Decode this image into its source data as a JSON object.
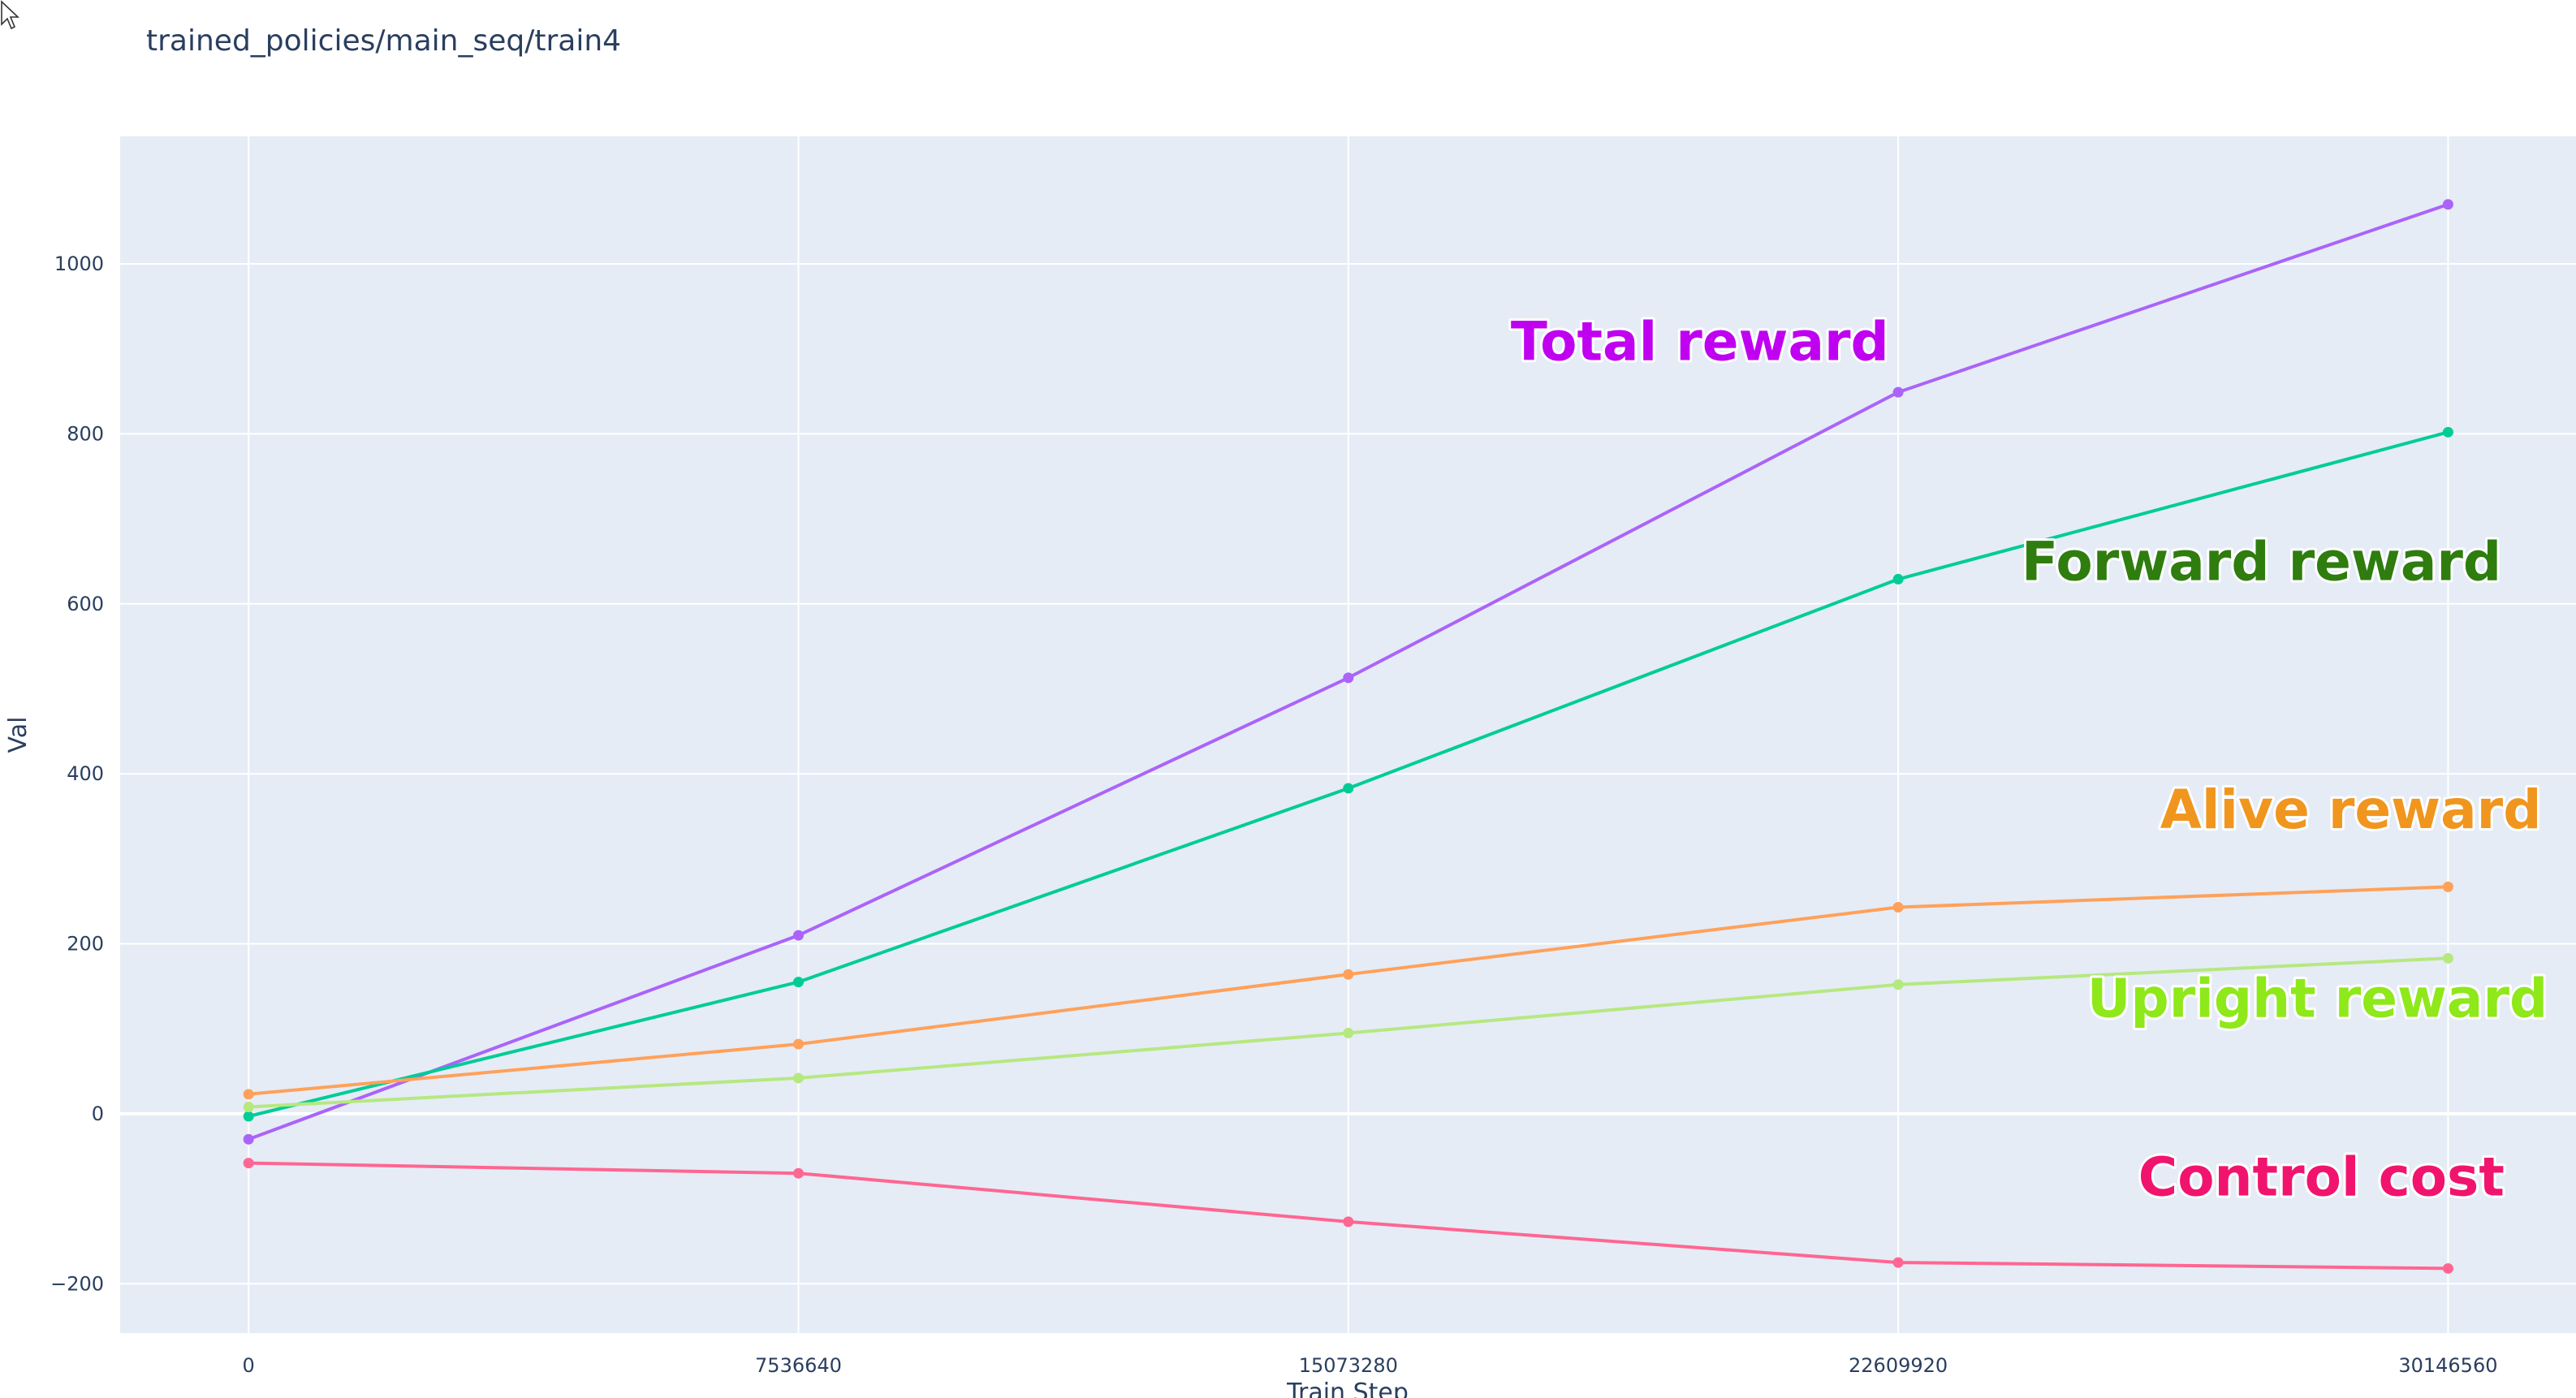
{
  "page": {
    "title": "trained_policies/main_seq/train4"
  },
  "chart_data": {
    "type": "line",
    "title": "trained_policies/main_seq/train4",
    "xlabel": "Train Step",
    "ylabel": "Val",
    "x": [
      0,
      7536640,
      15073280,
      22609920,
      30146560
    ],
    "x_tick_labels": [
      "0",
      "7536640",
      "15073280",
      "22609920",
      "30146560"
    ],
    "y_ticks": [
      -200,
      0,
      200,
      400,
      600,
      800,
      1000
    ],
    "y_tick_labels": [
      "−200",
      "0",
      "200",
      "400",
      "600",
      "800",
      "1000"
    ],
    "xlim": [
      -1760000,
      31900000
    ],
    "ylim": [
      -258,
      1150
    ],
    "grid": true,
    "legend": "none",
    "background": "#e5ecf6",
    "series": [
      {
        "name": "Total reward",
        "color": "#ab63fa",
        "values": [
          -30,
          210,
          513,
          849,
          1070
        ]
      },
      {
        "name": "Forward reward",
        "color": "#00cc96",
        "values": [
          -3,
          155,
          383,
          629,
          802
        ]
      },
      {
        "name": "Alive reward",
        "color": "#ffa15a",
        "values": [
          23,
          82,
          164,
          243,
          267
        ]
      },
      {
        "name": "Upright reward",
        "color": "#b6e880",
        "values": [
          8,
          42,
          95,
          152,
          183
        ]
      },
      {
        "name": "Control cost",
        "color": "#ff6692",
        "values": [
          -58,
          -70,
          -127,
          -175,
          -182
        ]
      }
    ],
    "annotations": [
      {
        "text": "Total reward",
        "color": "#c000f0",
        "x": 17300000,
        "y": 887
      },
      {
        "text": "Forward reward",
        "color": "#2e7d0e",
        "x": 24300000,
        "y": 628
      },
      {
        "text": "Alive reward",
        "color": "#f0961e",
        "x": 26200000,
        "y": 336
      },
      {
        "text": "Upright reward",
        "color": "#8ee81a",
        "x": 25200000,
        "y": 114
      },
      {
        "text": "Control cost",
        "color": "#f0146e",
        "x": 25900000,
        "y": -96
      }
    ]
  }
}
